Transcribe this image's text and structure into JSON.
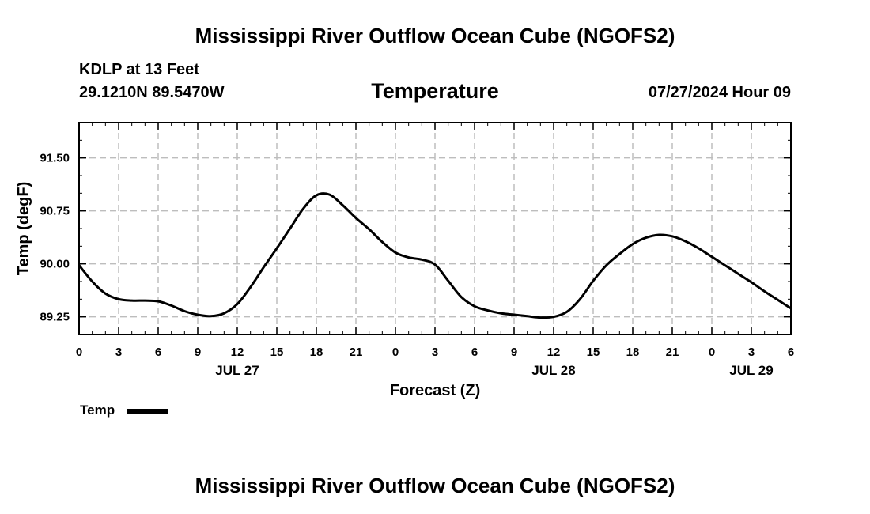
{
  "header": {
    "title": "Mississippi River Outflow Ocean Cube (NGOFS2)",
    "station": "KDLP at 13 Feet",
    "coordinates": "29.1210N  89.5470W",
    "subtitle": "Temperature",
    "timestamp": "07/27/2024 Hour 09"
  },
  "footer": {
    "title": "Mississippi River Outflow Ocean Cube (NGOFS2)"
  },
  "legend": {
    "label": "Temp",
    "color": "#000000"
  },
  "chart_data": {
    "type": "line",
    "title": "Temperature",
    "xlabel": "Forecast (Z)",
    "ylabel": "Temp (degF)",
    "xlim": [
      0,
      54
    ],
    "ylim": [
      89.0,
      92.0
    ],
    "grid": true,
    "x_ticks": [
      0,
      3,
      6,
      9,
      12,
      15,
      18,
      21,
      24,
      27,
      30,
      33,
      36,
      39,
      42,
      45,
      48,
      51,
      54
    ],
    "x_tick_labels": [
      "0",
      "3",
      "6",
      "9",
      "12",
      "15",
      "18",
      "21",
      "0",
      "3",
      "6",
      "9",
      "12",
      "15",
      "18",
      "21",
      "0",
      "3",
      "6"
    ],
    "date_labels": [
      {
        "x": 12,
        "label": "JUL 27"
      },
      {
        "x": 36,
        "label": "JUL 28"
      },
      {
        "x": 51,
        "label": "JUL 29"
      }
    ],
    "y_ticks": [
      89.25,
      90.0,
      90.75,
      91.5
    ],
    "y_tick_labels": [
      "89.25",
      "90.00",
      "90.75",
      "91.50"
    ],
    "series": [
      {
        "name": "Temp",
        "x": [
          0,
          1,
          2,
          3,
          4,
          5,
          6,
          7,
          8,
          9,
          10,
          11,
          12,
          13,
          14,
          15,
          16,
          17,
          18,
          19,
          20,
          21,
          22,
          23,
          24,
          25,
          26,
          27,
          28,
          29,
          30,
          31,
          32,
          33,
          34,
          35,
          36,
          37,
          38,
          39,
          40,
          41,
          42,
          43,
          44,
          45,
          46,
          47,
          48,
          49,
          50,
          51,
          52,
          53,
          54
        ],
        "values": [
          89.98,
          89.75,
          89.58,
          89.5,
          89.48,
          89.48,
          89.47,
          89.41,
          89.33,
          89.28,
          89.26,
          89.3,
          89.43,
          89.67,
          89.95,
          90.22,
          90.5,
          90.78,
          90.97,
          90.98,
          90.83,
          90.65,
          90.49,
          90.31,
          90.16,
          90.09,
          90.06,
          89.99,
          89.76,
          89.53,
          89.4,
          89.34,
          89.3,
          89.28,
          89.26,
          89.24,
          89.25,
          89.32,
          89.5,
          89.76,
          89.98,
          90.14,
          90.28,
          90.37,
          90.41,
          90.39,
          90.32,
          90.22,
          90.1,
          89.98,
          89.86,
          89.74,
          89.61,
          89.49,
          89.37
        ]
      }
    ]
  }
}
